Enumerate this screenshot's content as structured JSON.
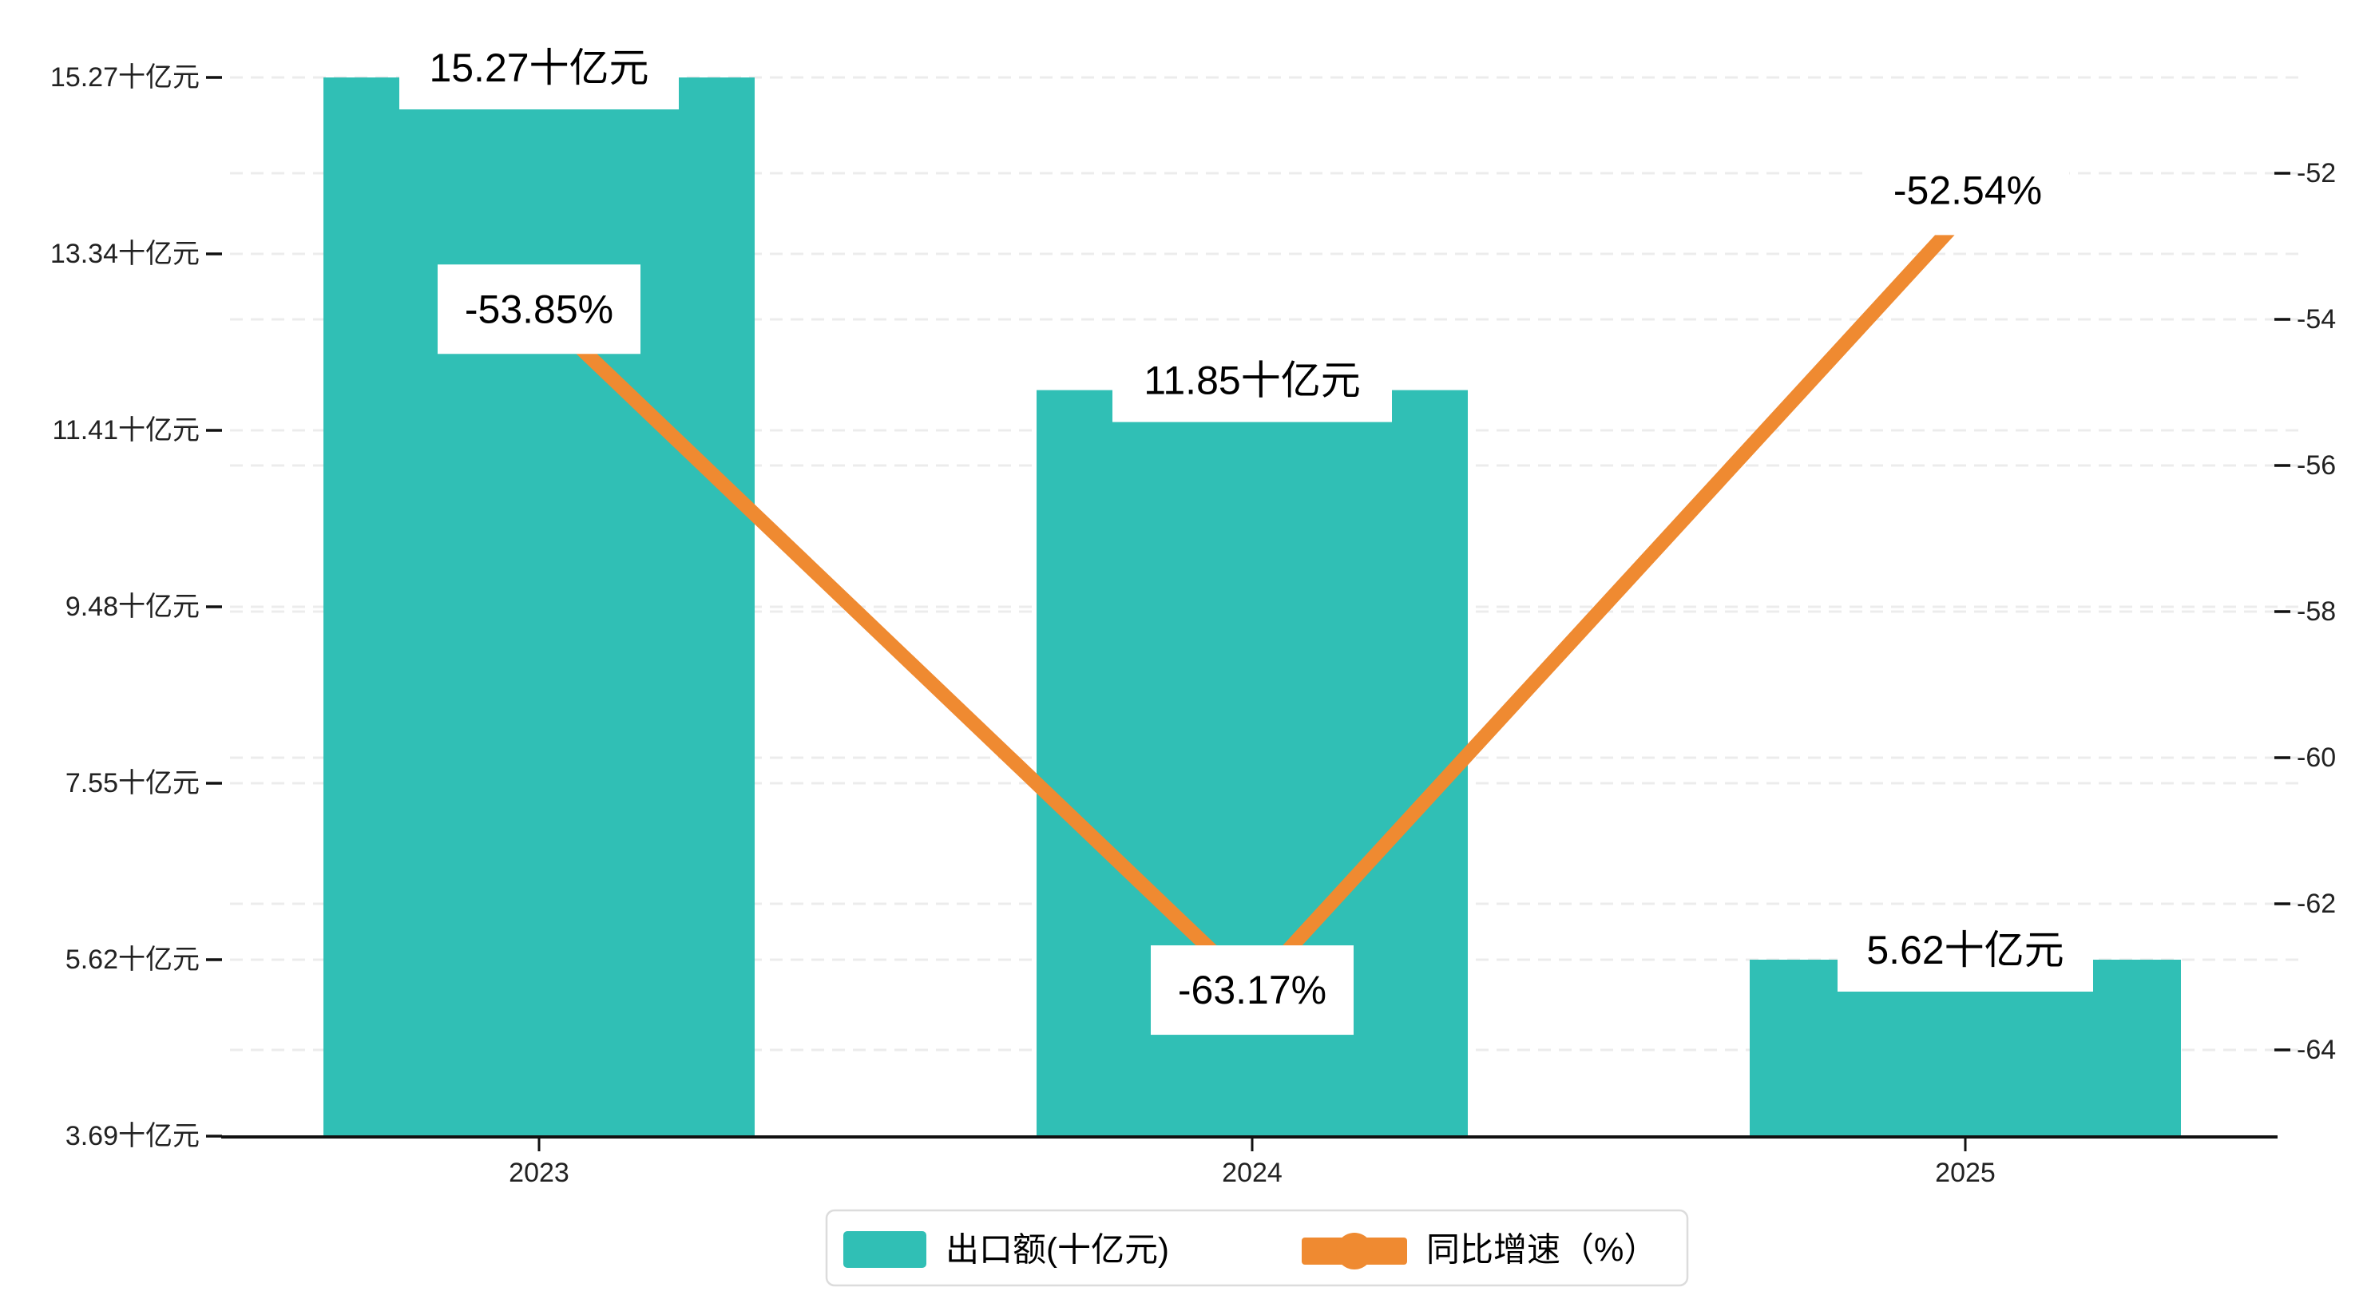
{
  "chart_data": {
    "type": "bar",
    "combo_types": [
      "bar",
      "line"
    ],
    "title": "",
    "categories": [
      "2023",
      "2024",
      "2025"
    ],
    "series": [
      {
        "name": "出口额(十亿元)",
        "type": "bar",
        "axis": "left",
        "values": [
          15.27,
          11.85,
          5.62
        ],
        "data_labels": [
          "15.27十亿元",
          "11.85十亿元",
          "5.62十亿元"
        ]
      },
      {
        "name": "同比增速（%）",
        "type": "line",
        "axis": "right",
        "values": [
          -53.85,
          -63.17,
          -52.54
        ],
        "data_labels": [
          "-53.85%",
          "-63.17%",
          "-52.54%"
        ]
      }
    ],
    "left_axis": {
      "unit": "十亿元",
      "min": 3.69,
      "max": 15.27,
      "tick_values": [
        15.27,
        13.34,
        11.41,
        9.48,
        7.55,
        5.62,
        3.69
      ],
      "tick_labels": [
        "15.27十亿元",
        "13.34十亿元",
        "11.41十亿元",
        "9.48十亿元",
        "7.55十亿元",
        "5.62十亿元",
        "3.69十亿元"
      ]
    },
    "right_axis": {
      "unit": "%",
      "min": -64,
      "max": -52,
      "tick_values": [
        -52,
        -54,
        -56,
        -58,
        -60,
        -62,
        -64
      ],
      "tick_labels": [
        "-52",
        "-54",
        "-56",
        "-58",
        "-60",
        "-62",
        "-64"
      ]
    },
    "grid": "dashed horizontal gridlines for both axes, interleaved",
    "legend_position": "bottom-center"
  },
  "legend": {
    "items": [
      {
        "label": "出口额(十亿元)",
        "marker": "bar-swatch"
      },
      {
        "label": "同比增速（%）",
        "marker": "line-with-dot"
      }
    ]
  },
  "colors": {
    "bar": "#30bfb5",
    "line": "#ef8a31",
    "grid": "#ececec",
    "axis": "#111111",
    "tick_text": "#222222",
    "label_text": "#000000",
    "label_bg": "#ffffff",
    "legend_border": "#dcdcdc",
    "background": "#ffffff"
  }
}
